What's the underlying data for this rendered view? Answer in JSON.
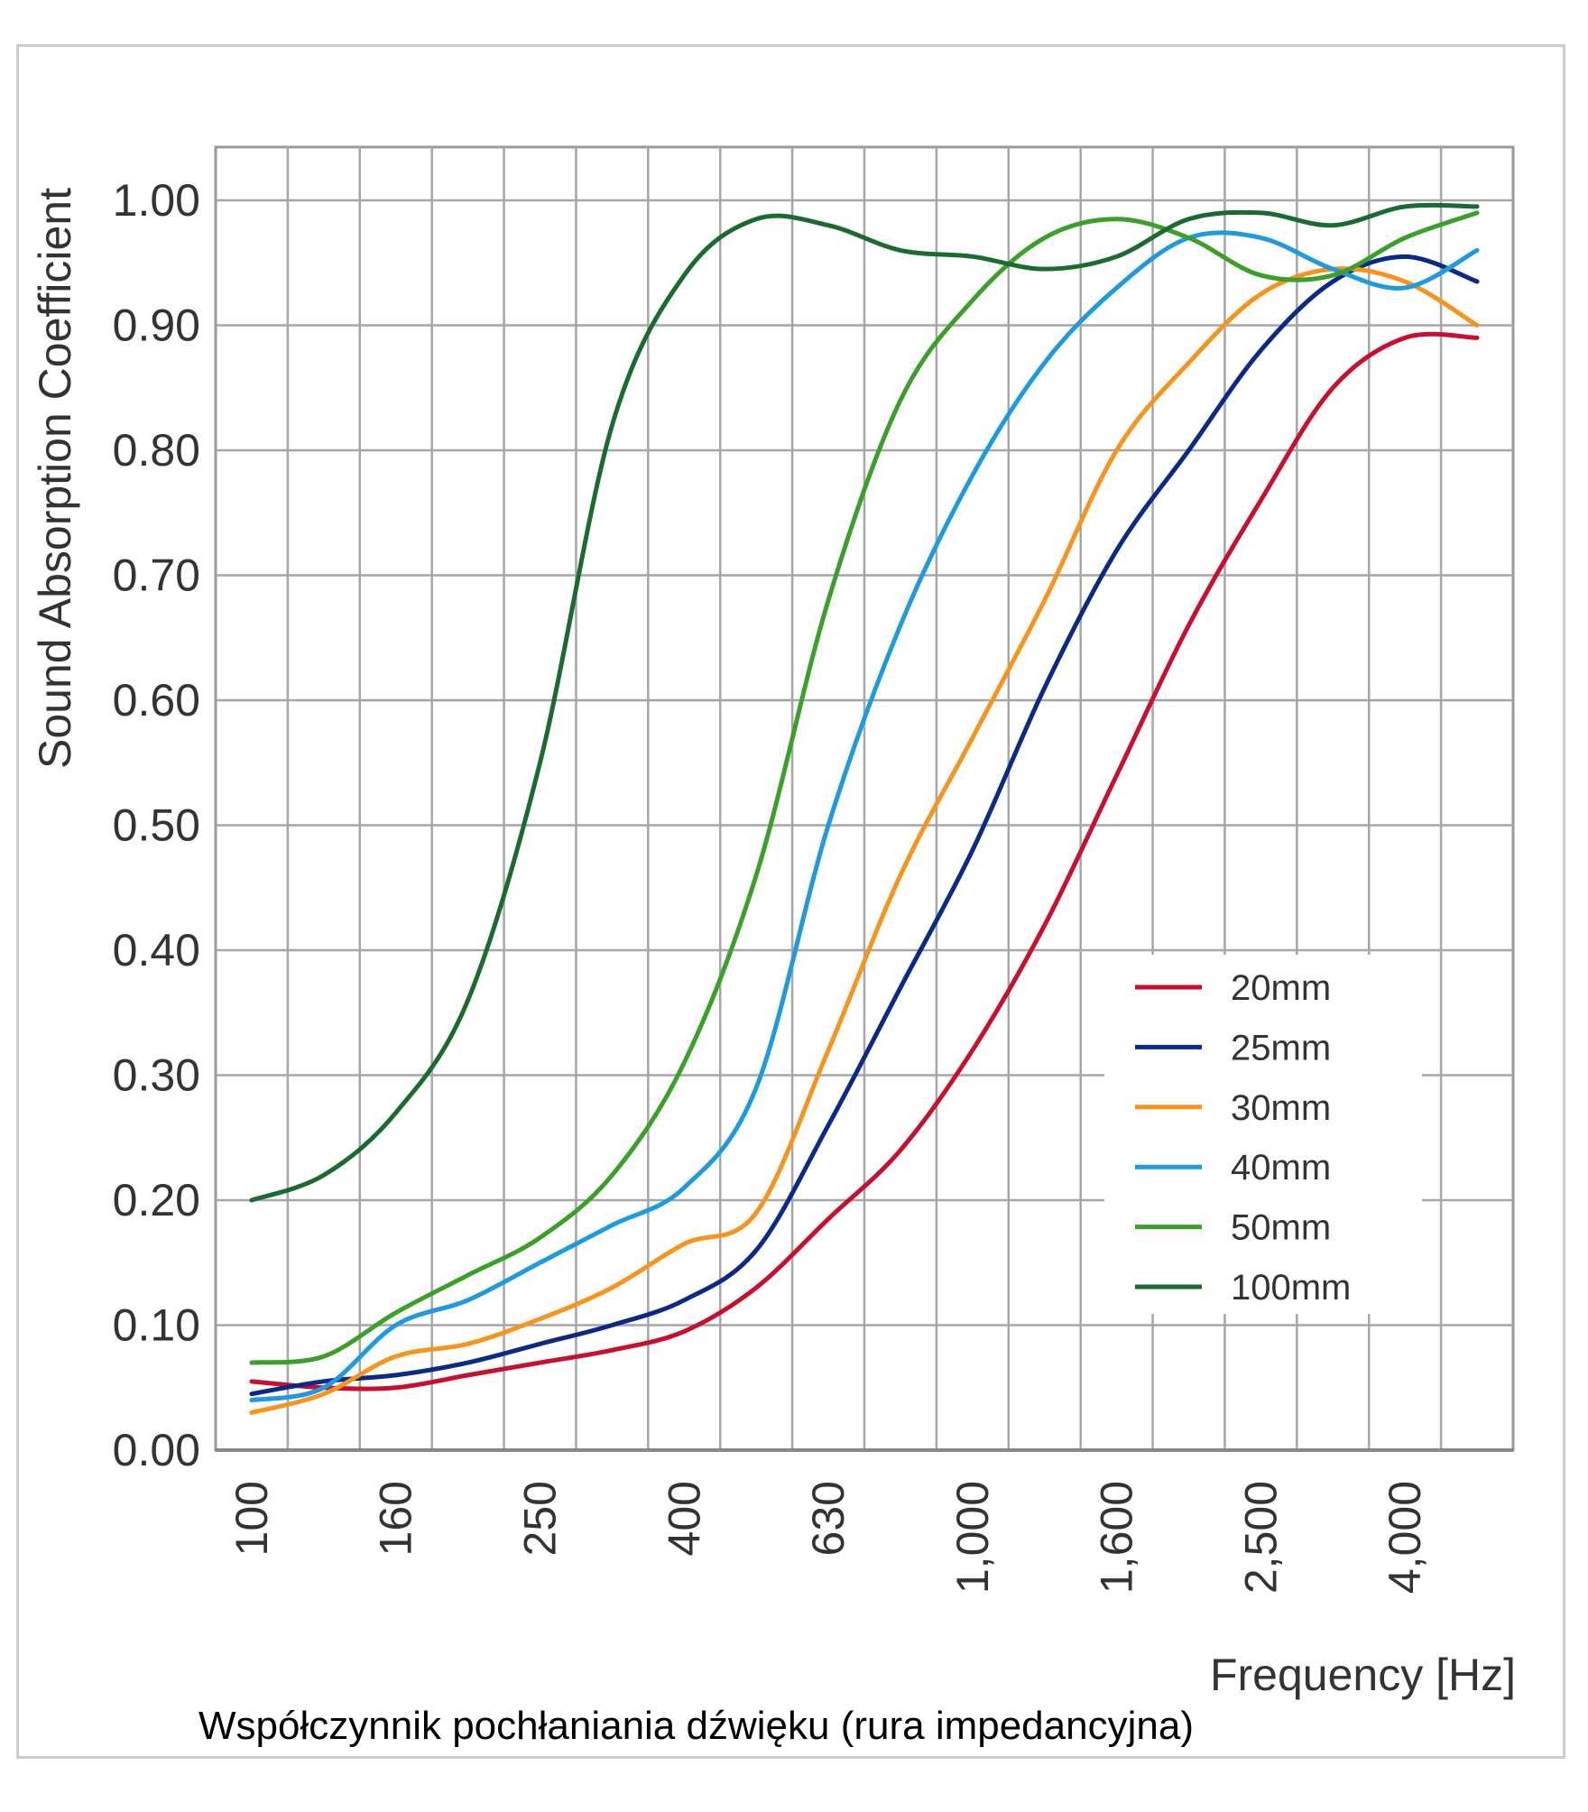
{
  "chart_data": {
    "type": "line",
    "title": "",
    "caption": "Współczynnik pochłaniania dźwięku (rura impedancyjna)",
    "xlabel": "Frequency [Hz]",
    "ylabel": "Sound Absorption Coefficient",
    "x_scale": "log (1/3-octave bands)",
    "x": [
      100,
      125,
      160,
      200,
      250,
      315,
      400,
      500,
      630,
      800,
      1000,
      1250,
      1600,
      2000,
      2500,
      3150,
      4000,
      5000
    ],
    "x_tick_labels": [
      "100",
      "160",
      "250",
      "400",
      "630",
      "1,000",
      "1,600",
      "2,500",
      "4,000"
    ],
    "x_tick_values": [
      100,
      160,
      250,
      400,
      630,
      1000,
      1600,
      2500,
      4000
    ],
    "ylim": [
      0,
      1.0
    ],
    "y_tick_labels": [
      "0.00",
      "0.10",
      "0.20",
      "0.30",
      "0.40",
      "0.50",
      "0.60",
      "0.70",
      "0.80",
      "0.90",
      "1.00"
    ],
    "grid": true,
    "legend_position": "bottom-right",
    "series": [
      {
        "name": "20mm",
        "color": "#c8102e",
        "values": [
          0.055,
          0.05,
          0.05,
          0.06,
          0.07,
          0.08,
          0.095,
          0.13,
          0.185,
          0.24,
          0.32,
          0.42,
          0.54,
          0.66,
          0.76,
          0.85,
          0.89,
          0.89
        ]
      },
      {
        "name": "25mm",
        "color": "#0b2a87",
        "values": [
          0.045,
          0.055,
          0.06,
          0.07,
          0.085,
          0.1,
          0.12,
          0.16,
          0.26,
          0.37,
          0.48,
          0.61,
          0.72,
          0.8,
          0.88,
          0.935,
          0.955,
          0.935
        ]
      },
      {
        "name": "30mm",
        "color": "#f7941d",
        "values": [
          0.03,
          0.045,
          0.075,
          0.085,
          0.105,
          0.13,
          0.165,
          0.19,
          0.32,
          0.46,
          0.57,
          0.68,
          0.8,
          0.87,
          0.925,
          0.945,
          0.935,
          0.9
        ]
      },
      {
        "name": "40mm",
        "color": "#1e9be0",
        "values": [
          0.04,
          0.05,
          0.1,
          0.12,
          0.15,
          0.18,
          0.21,
          0.29,
          0.5,
          0.66,
          0.78,
          0.87,
          0.93,
          0.97,
          0.97,
          0.945,
          0.93,
          0.96
        ]
      },
      {
        "name": "50mm",
        "color": "#3aa02a",
        "values": [
          0.07,
          0.075,
          0.11,
          0.14,
          0.17,
          0.22,
          0.31,
          0.46,
          0.68,
          0.84,
          0.92,
          0.97,
          0.985,
          0.97,
          0.94,
          0.94,
          0.97,
          0.99
        ]
      },
      {
        "name": "100mm",
        "color": "#1a6b2e",
        "values": [
          0.2,
          0.22,
          0.27,
          0.36,
          0.55,
          0.82,
          0.94,
          0.985,
          0.98,
          0.96,
          0.955,
          0.945,
          0.955,
          0.985,
          0.99,
          0.98,
          0.995,
          0.995
        ]
      }
    ]
  }
}
